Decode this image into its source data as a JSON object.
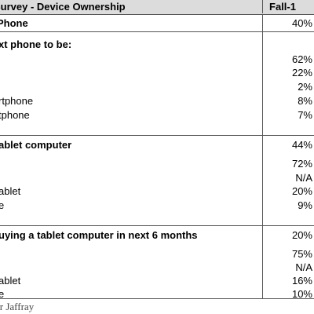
{
  "header": {
    "title": "Survey - Device Ownership",
    "period": "Fall-1"
  },
  "rows": [
    {
      "label": "Phone",
      "value": "40%",
      "bold": true
    },
    {
      "label": "xt phone to be:",
      "value": "",
      "bold": true
    },
    {
      "label": "",
      "value": "62%",
      "bold": false
    },
    {
      "label": "",
      "value": "22%",
      "bold": false
    },
    {
      "label": "",
      "value": "2%",
      "bold": false
    },
    {
      "label": "rtphone",
      "value": "8%",
      "bold": false
    },
    {
      "label": "tphone",
      "value": "7%",
      "bold": false
    },
    {
      "label": "ablet computer",
      "value": "44%",
      "bold": true
    },
    {
      "label": "",
      "value": "72%",
      "bold": false
    },
    {
      "label": "",
      "value": "N/A",
      "bold": false
    },
    {
      "label": "ablet",
      "value": "20%",
      "bold": false
    },
    {
      "label": "e",
      "value": "9%",
      "bold": false
    },
    {
      "label": "uying a tablet computer in next 6 months",
      "value": "20%",
      "bold": true
    },
    {
      "label": "",
      "value": "75%",
      "bold": false
    },
    {
      "label": "",
      "value": "N/A",
      "bold": false
    },
    {
      "label": "ablet",
      "value": "16%",
      "bold": false
    },
    {
      "label": "e",
      "value": "10%",
      "bold": false
    }
  ],
  "footer": {
    "source": "er Jaffray"
  }
}
